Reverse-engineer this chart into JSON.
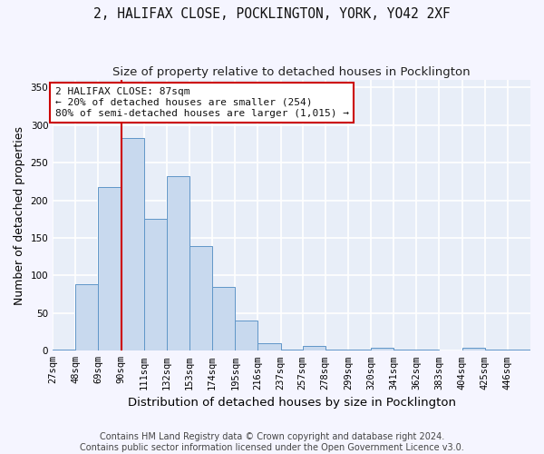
{
  "title_line1": "2, HALIFAX CLOSE, POCKLINGTON, YORK, YO42 2XF",
  "title_line2": "Size of property relative to detached houses in Pocklington",
  "xlabel": "Distribution of detached houses by size in Pocklington",
  "ylabel": "Number of detached properties",
  "footer_line1": "Contains HM Land Registry data © Crown copyright and database right 2024.",
  "footer_line2": "Contains public sector information licensed under the Open Government Licence v3.0.",
  "bins": [
    27,
    48,
    69,
    90,
    111,
    132,
    153,
    174,
    195,
    216,
    237,
    257,
    278,
    299,
    320,
    341,
    362,
    383,
    404,
    425,
    446
  ],
  "counts": [
    2,
    88,
    218,
    283,
    175,
    232,
    139,
    85,
    40,
    10,
    2,
    6,
    2,
    1,
    4,
    1,
    1,
    0,
    4,
    1,
    1
  ],
  "bar_color": "#c8d9ee",
  "bar_edge_color": "#6096c8",
  "vline_x": 90,
  "vline_color": "#cc0000",
  "annotation_line1": "2 HALIFAX CLOSE: 87sqm",
  "annotation_line2": "← 20% of detached houses are smaller (254)",
  "annotation_line3": "80% of semi-detached houses are larger (1,015) →",
  "annotation_box_color": "#ffffff",
  "annotation_border_color": "#cc0000",
  "ylim": [
    0,
    360
  ],
  "yticks": [
    0,
    50,
    100,
    150,
    200,
    250,
    300,
    350
  ],
  "background_color": "#e8eef8",
  "grid_color": "#ffffff",
  "title_fontsize": 10.5,
  "subtitle_fontsize": 9.5,
  "axis_label_fontsize": 9,
  "tick_fontsize": 7.5,
  "annotation_fontsize": 8,
  "footer_fontsize": 7
}
